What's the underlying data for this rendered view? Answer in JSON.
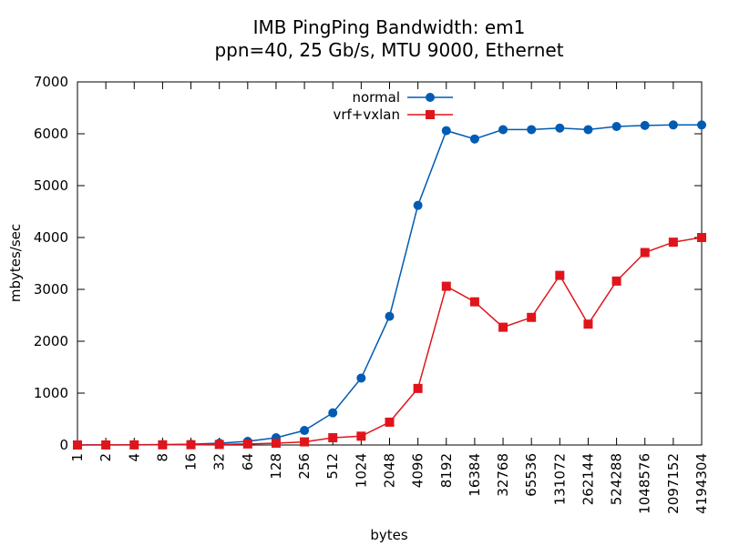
{
  "chart_data": {
    "type": "line",
    "title": "IMB PingPing Bandwidth: em1",
    "subtitle": "ppn=40, 25 Gb/s, MTU 9000, Ethernet",
    "xlabel": "bytes",
    "ylabel": "mbytes/sec",
    "ylim": [
      0,
      7000
    ],
    "yticks": [
      0,
      1000,
      2000,
      3000,
      4000,
      5000,
      6000,
      7000
    ],
    "categories": [
      "1",
      "2",
      "4",
      "8",
      "16",
      "32",
      "64",
      "128",
      "256",
      "512",
      "1024",
      "2048",
      "4096",
      "8192",
      "16384",
      "32768",
      "65536",
      "131072",
      "262144",
      "524288",
      "1048576",
      "2097152",
      "4194304"
    ],
    "legend_position": "top-center",
    "series": [
      {
        "name": "normal",
        "color": "#005bb3",
        "marker": "circle",
        "values": [
          1,
          2,
          4,
          8,
          15,
          35,
          70,
          140,
          280,
          620,
          1290,
          2480,
          4620,
          6060,
          5900,
          6080,
          6080,
          6110,
          6080,
          6140,
          6160,
          6170,
          6170
        ]
      },
      {
        "name": "vrf+vxlan",
        "color": "#e0151c",
        "marker": "square",
        "values": [
          0,
          1,
          2,
          3,
          5,
          10,
          20,
          35,
          60,
          140,
          170,
          440,
          1090,
          3060,
          2760,
          2270,
          2460,
          3270,
          2330,
          3160,
          3710,
          3910,
          4000
        ]
      }
    ]
  }
}
